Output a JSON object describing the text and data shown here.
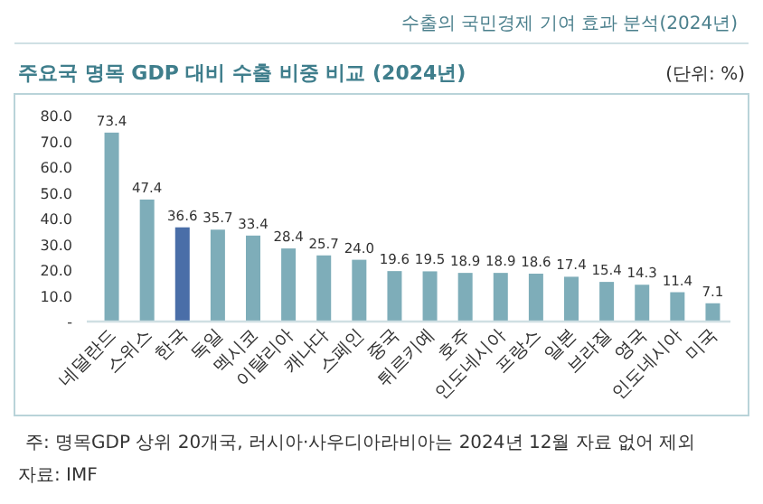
{
  "chart_data": {
    "type": "bar",
    "title": "주요국 명목 GDP 대비 수출 비중 비교 (2024년)",
    "ylabel": "(단위: %)",
    "categories": [
      "네덜란드",
      "스위스",
      "한국",
      "독일",
      "멕시코",
      "이탈리아",
      "캐나다",
      "스페인",
      "중국",
      "튀르키예",
      "호주",
      "인도네시아",
      "프랑스",
      "일본",
      "브라질",
      "영국",
      "인도네시아",
      "미국"
    ],
    "values": [
      73.4,
      47.4,
      36.6,
      35.7,
      33.4,
      28.4,
      25.7,
      24.0,
      19.6,
      19.5,
      18.9,
      18.9,
      18.6,
      17.4,
      15.4,
      14.3,
      11.4,
      7.1
    ],
    "value_labels": [
      "73.4",
      "47.4",
      "36.6",
      "35.7",
      "33.4",
      "28.4",
      "25.7",
      "24.0",
      "19.6",
      "19.5",
      "18.9",
      "18.9",
      "18.6",
      "17.4",
      "15.4",
      "14.3",
      "11.4",
      "7.1"
    ],
    "colors": [
      "#7eadb9",
      "#7eadb9",
      "#4a6ea8",
      "#7eadb9",
      "#7eadb9",
      "#7eadb9",
      "#7eadb9",
      "#7eadb9",
      "#7eadb9",
      "#7eadb9",
      "#7eadb9",
      "#7eadb9",
      "#7eadb9",
      "#7eadb9",
      "#7eadb9",
      "#7eadb9",
      "#7eadb9",
      "#7eadb9"
    ],
    "ylim": [
      0,
      80
    ],
    "yticks": [
      {
        "value": 0,
        "label": "-"
      },
      {
        "value": 10,
        "label": "10.0"
      },
      {
        "value": 20,
        "label": "20.0"
      },
      {
        "value": 30,
        "label": "30.0"
      },
      {
        "value": 40,
        "label": "40.0"
      },
      {
        "value": 50,
        "label": "50.0"
      },
      {
        "value": 60,
        "label": "60.0"
      },
      {
        "value": 70,
        "label": "70.0"
      },
      {
        "value": 80,
        "label": "80.0"
      }
    ],
    "grid": false,
    "annotations": [
      "수출의 국민경제 기여 효과 분석(2024년)",
      "주: 명목GDP 상위 20개국, 러시아·사우디아라비아는 2024년 12월 자료 없어 제외",
      "자료: IMF"
    ]
  }
}
